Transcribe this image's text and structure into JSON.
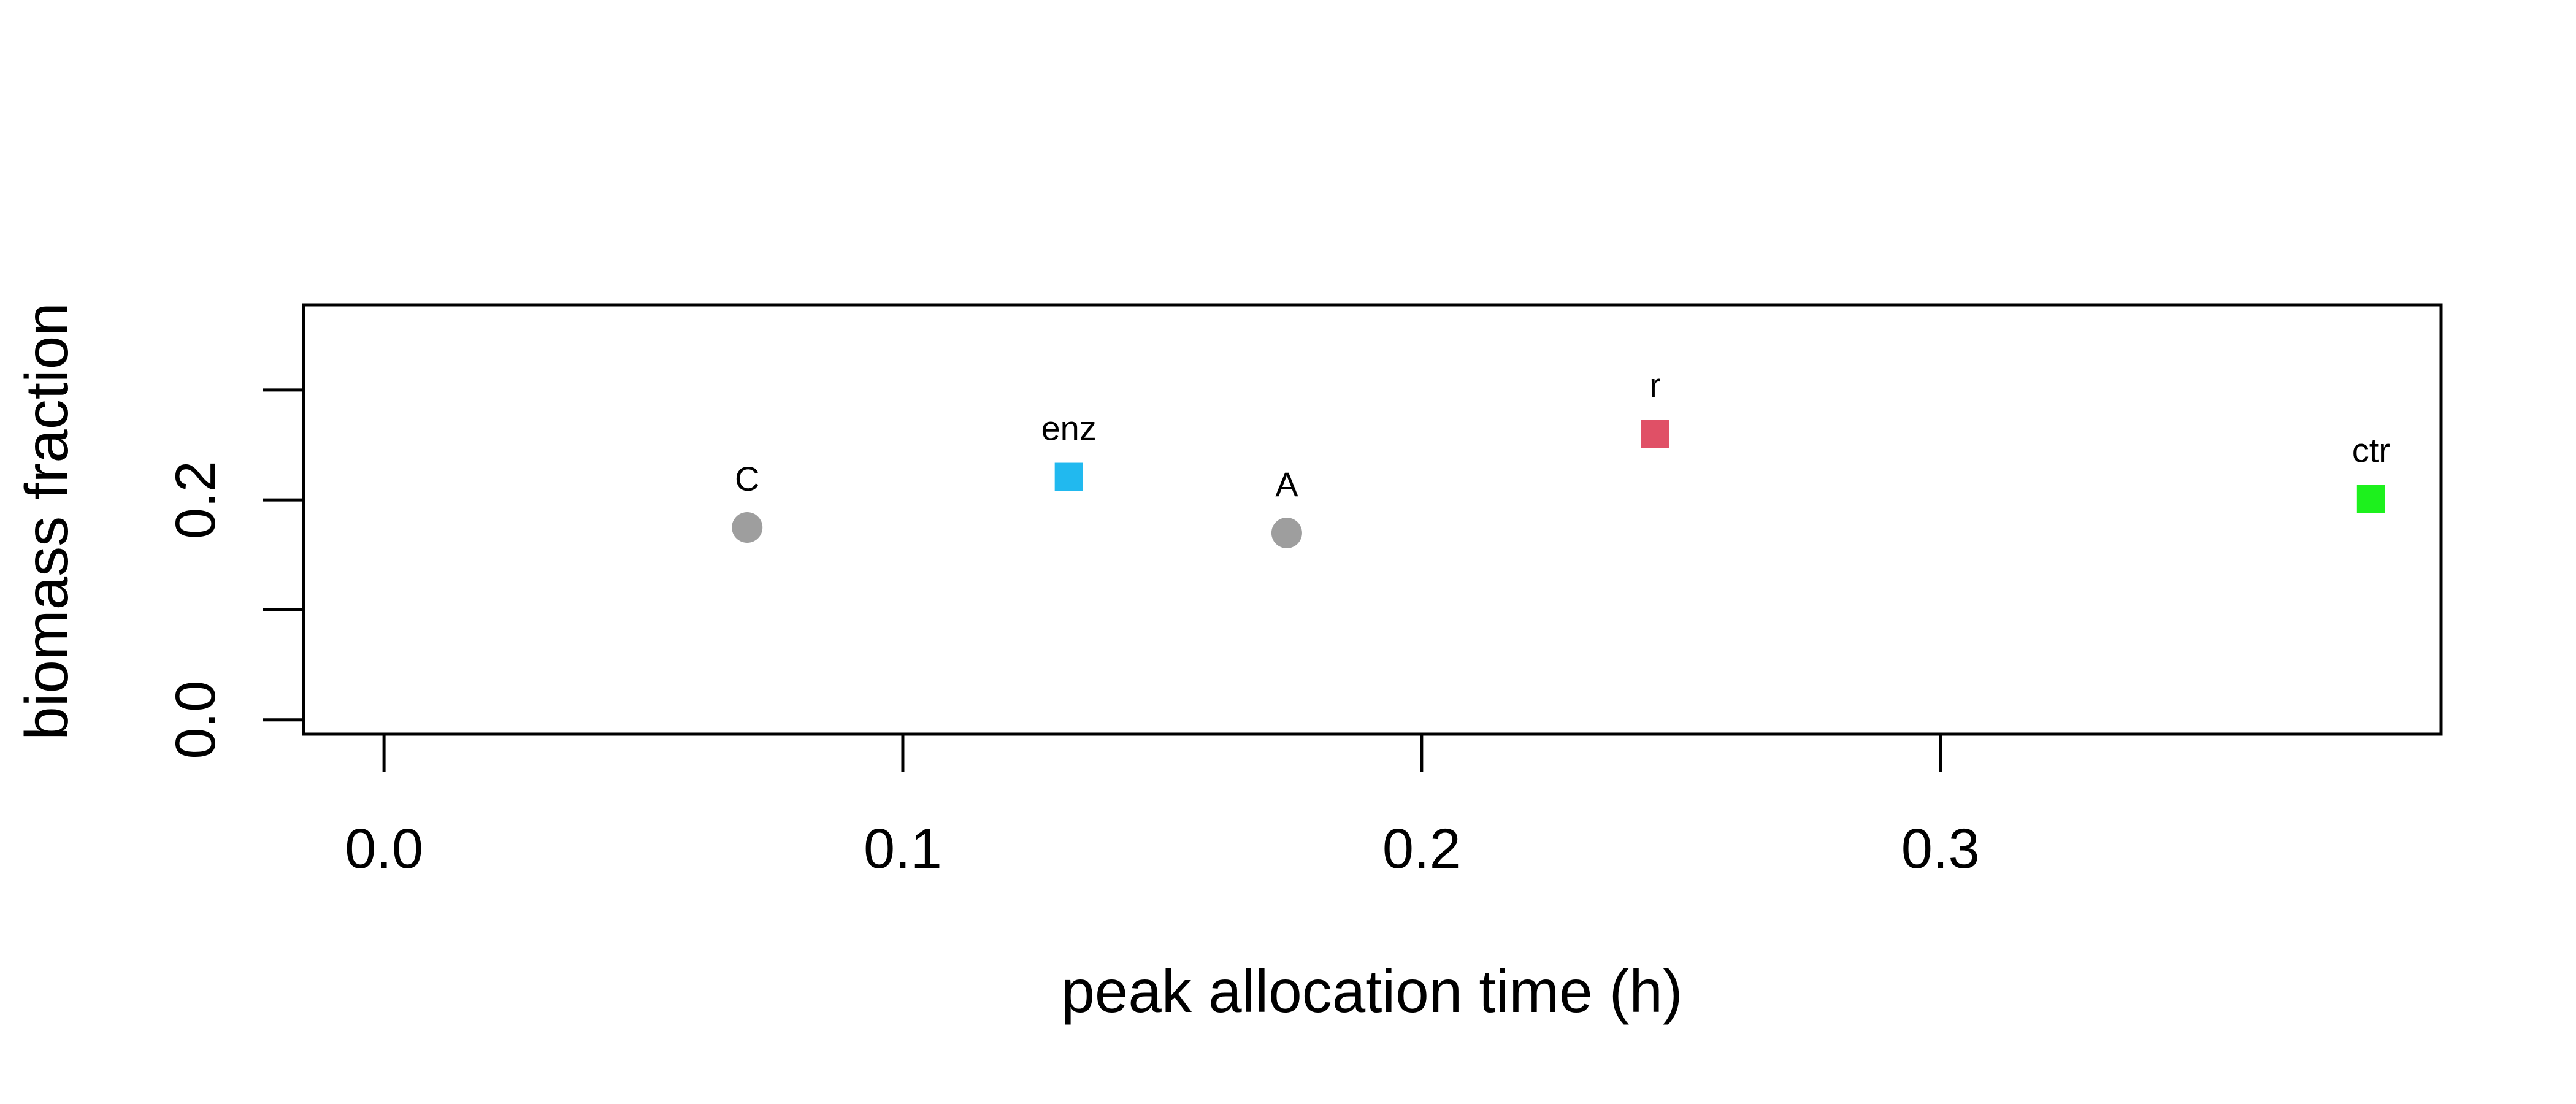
{
  "chart_data": {
    "type": "scatter",
    "xlabel": "peak allocation time (h)",
    "ylabel": "biomass fraction",
    "xlim": [
      -0.0155,
      0.3965
    ],
    "ylim": [
      -0.013,
      0.3775
    ],
    "x_ticks": [
      0.0,
      0.1,
      0.2,
      0.3
    ],
    "x_tick_labels": [
      "0.0",
      "0.1",
      "0.2",
      "0.3"
    ],
    "y_ticks": [
      0.0,
      0.1,
      0.2,
      0.3
    ],
    "y_tick_labels": [
      "0.0",
      "",
      "0.2",
      ""
    ],
    "grid": false,
    "legend": "none",
    "points": [
      {
        "label": "C",
        "x": 0.07,
        "y": 0.175,
        "shape": "circle",
        "color": "#9e9e9e"
      },
      {
        "label": "enz",
        "x": 0.132,
        "y": 0.221,
        "shape": "square",
        "color": "#21b9ef"
      },
      {
        "label": "A",
        "x": 0.174,
        "y": 0.17,
        "shape": "circle",
        "color": "#9e9e9e"
      },
      {
        "label": "r",
        "x": 0.245,
        "y": 0.26,
        "shape": "square",
        "color": "#e05066"
      },
      {
        "label": "ctr",
        "x": 0.383,
        "y": 0.201,
        "shape": "square",
        "color": "#1df11d"
      }
    ]
  }
}
